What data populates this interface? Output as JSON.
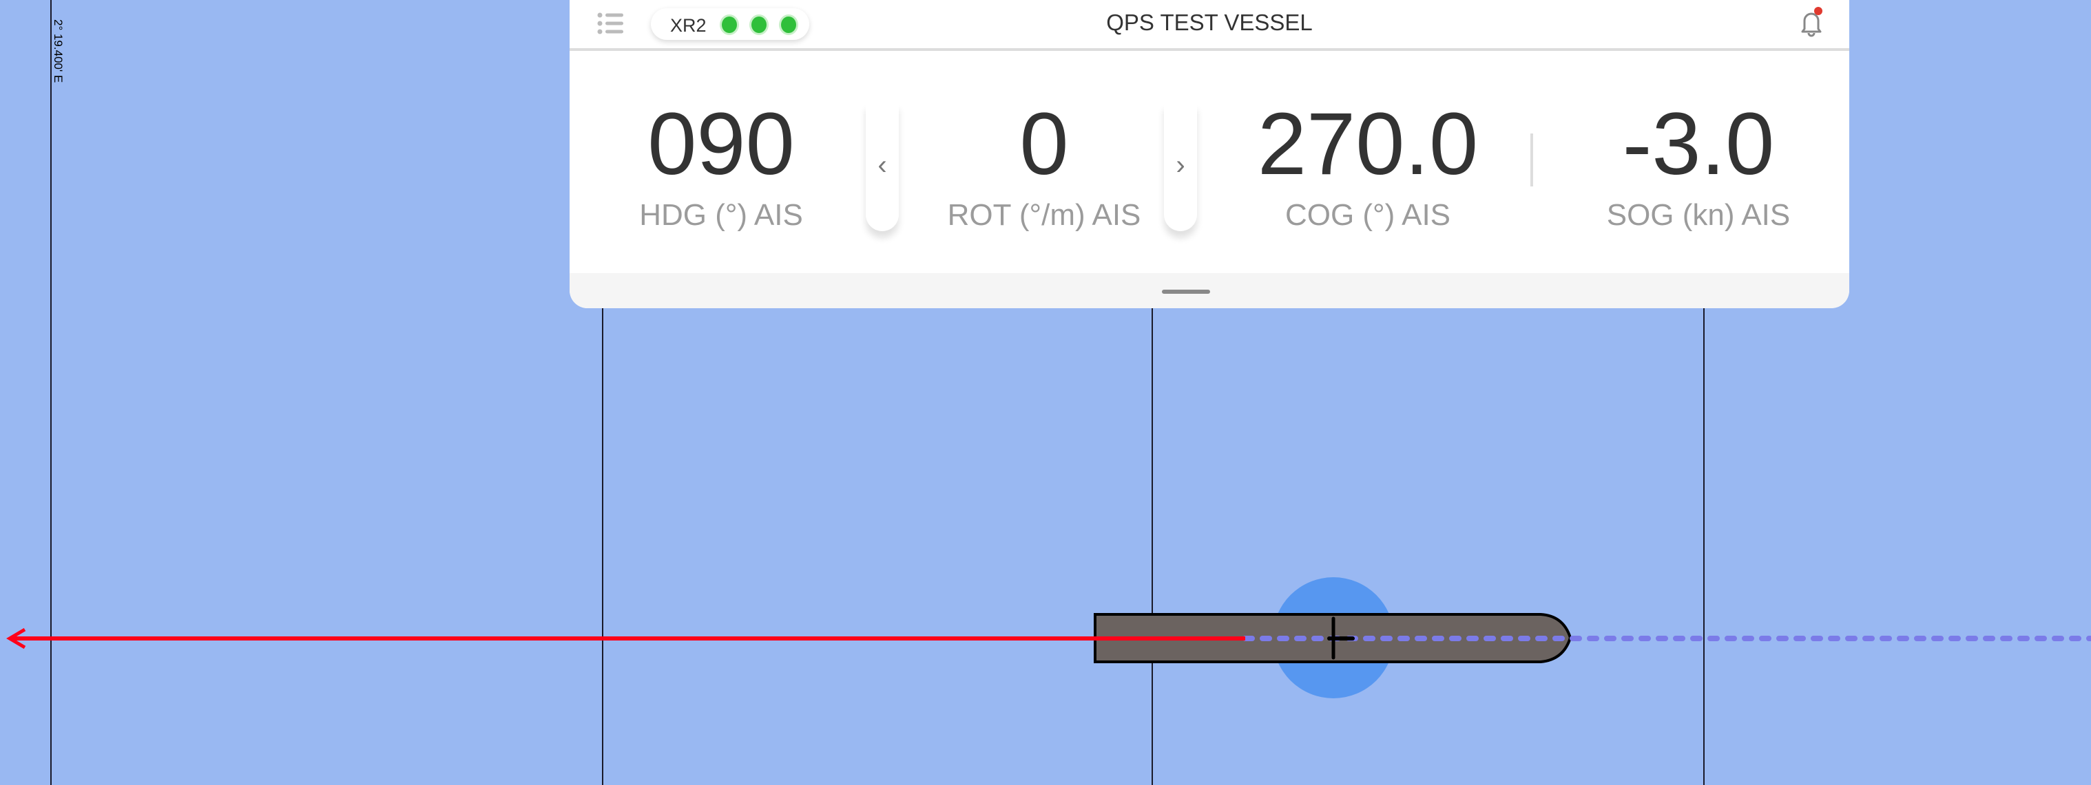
{
  "map": {
    "longitude_label": "2° 19.400' E",
    "colors": {
      "water": "#99b8f2",
      "vessel": "#6b6360",
      "heading_line": "#ff0019",
      "course_prediction": "#7b7be8",
      "position_circle": "#5797f0"
    }
  },
  "header": {
    "title": "QPS TEST VESSEL",
    "menu_icon": "list-icon",
    "status_pill": {
      "label": "XR2",
      "indicators": [
        "ok",
        "ok",
        "ok"
      ],
      "indicator_color": "#2fbf3a"
    },
    "notification_icon": "bell-icon",
    "notification_badge_color": "#e03a2f"
  },
  "metrics": [
    {
      "value": "090",
      "label": "HDG (°) AIS"
    },
    {
      "value": "0",
      "label": "ROT (°/m) AIS"
    },
    {
      "value": "270.0",
      "label": "COG (°) AIS"
    },
    {
      "value": "-3.0",
      "label": "SOG (kn) AIS"
    }
  ],
  "nav": {
    "prev": "‹",
    "next": "›"
  }
}
